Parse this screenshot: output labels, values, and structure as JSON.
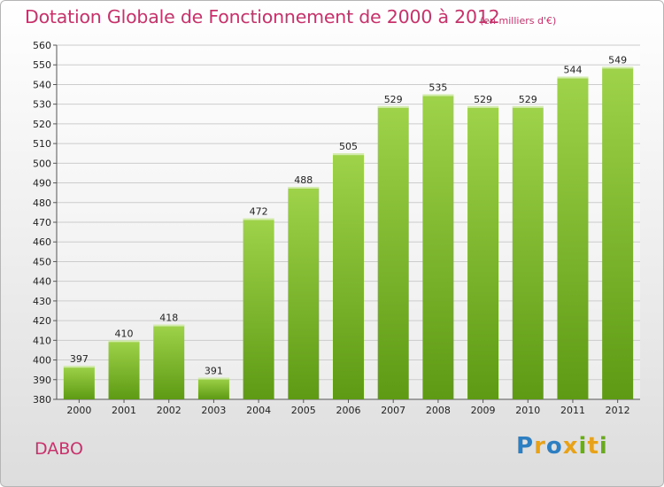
{
  "header": {
    "title": "Dotation Globale de Fonctionnement de 2000 à 2012",
    "subtitle": "(en milliers d'€)"
  },
  "footer": {
    "commune": "DABO",
    "brand": "Proxiti",
    "brand_letters": [
      {
        "ch": "P",
        "color": "#2e7fc2"
      },
      {
        "ch": "r",
        "color": "#e8a21a"
      },
      {
        "ch": "o",
        "color": "#2e7fc2"
      },
      {
        "ch": "x",
        "color": "#e8a21a"
      },
      {
        "ch": "i",
        "color": "#6aaa1e"
      },
      {
        "ch": "t",
        "color": "#e8a21a"
      },
      {
        "ch": "i",
        "color": "#6aaa1e"
      }
    ]
  },
  "colors": {
    "title": "#c8326b",
    "bar_top": "#9ed34a",
    "bar_bottom": "#5e9a14",
    "grid": "#cccccc"
  },
  "chart_data": {
    "type": "bar",
    "categories": [
      "2000",
      "2001",
      "2002",
      "2003",
      "2004",
      "2005",
      "2006",
      "2007",
      "2008",
      "2009",
      "2010",
      "2011",
      "2012"
    ],
    "values": [
      397,
      410,
      418,
      391,
      472,
      488,
      505,
      529,
      535,
      529,
      529,
      544,
      549
    ],
    "ylim": [
      380,
      560
    ],
    "yticks": [
      380,
      390,
      400,
      410,
      420,
      430,
      440,
      450,
      460,
      470,
      480,
      490,
      500,
      510,
      520,
      530,
      540,
      550,
      560
    ],
    "grid": true,
    "title": "Dotation Globale de Fonctionnement de 2000 à 2012",
    "subtitle": "(en milliers d'€)",
    "xlabel": "",
    "ylabel": ""
  }
}
